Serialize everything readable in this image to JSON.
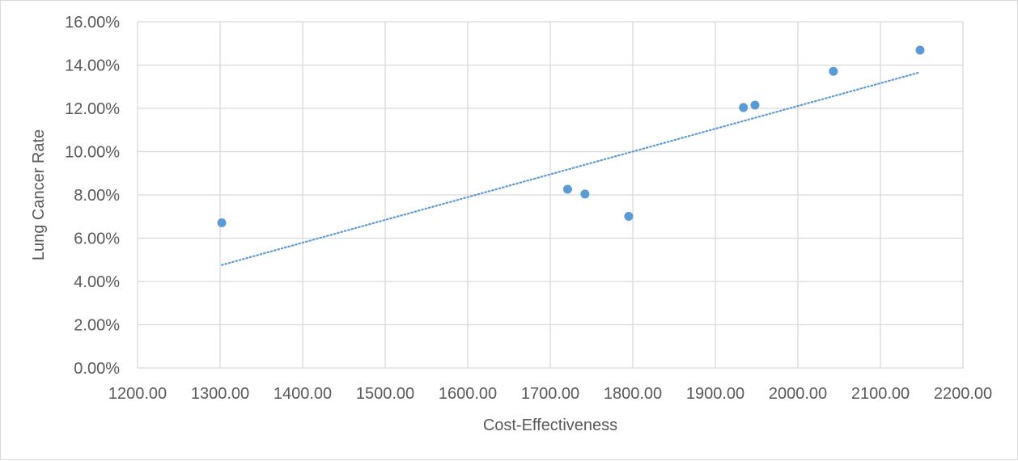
{
  "chart_data": {
    "type": "scatter",
    "title": "",
    "xlabel": "Cost-Effectiveness",
    "ylabel": "Lung Cancer Rate",
    "xlim": [
      1200,
      2200
    ],
    "ylim": [
      0,
      0.16
    ],
    "x_ticks": [
      1200,
      1300,
      1400,
      1500,
      1600,
      1700,
      1800,
      1900,
      2000,
      2100,
      2200
    ],
    "x_tick_labels": [
      "1200.00",
      "1300.00",
      "1400.00",
      "1500.00",
      "1600.00",
      "1700.00",
      "1800.00",
      "1900.00",
      "2000.00",
      "2100.00",
      "2200.00"
    ],
    "y_ticks": [
      0,
      0.02,
      0.04,
      0.06,
      0.08,
      0.1,
      0.12,
      0.14,
      0.16
    ],
    "y_tick_labels": [
      "0.00%",
      "2.00%",
      "4.00%",
      "6.00%",
      "8.00%",
      "10.00%",
      "12.00%",
      "14.00%",
      "16.00%"
    ],
    "grid": true,
    "legend": "none",
    "series": [
      {
        "color": "#5b9bd5",
        "points": [
          {
            "x": 1302,
            "y": 0.0671
          },
          {
            "x": 1721,
            "y": 0.0826
          },
          {
            "x": 1742,
            "y": 0.0804
          },
          {
            "x": 1795,
            "y": 0.0701
          },
          {
            "x": 1934,
            "y": 0.1204
          },
          {
            "x": 1948,
            "y": 0.1215
          },
          {
            "x": 2043,
            "y": 0.1371
          },
          {
            "x": 2148,
            "y": 0.1469
          }
        ]
      }
    ],
    "trendline": {
      "type": "linear",
      "style": "dotted",
      "color": "#5b9bd5",
      "x_start": 1302,
      "y_start": 0.0476,
      "x_end": 2148,
      "y_end": 0.1367
    },
    "grid_color": "#d9d9d9"
  }
}
